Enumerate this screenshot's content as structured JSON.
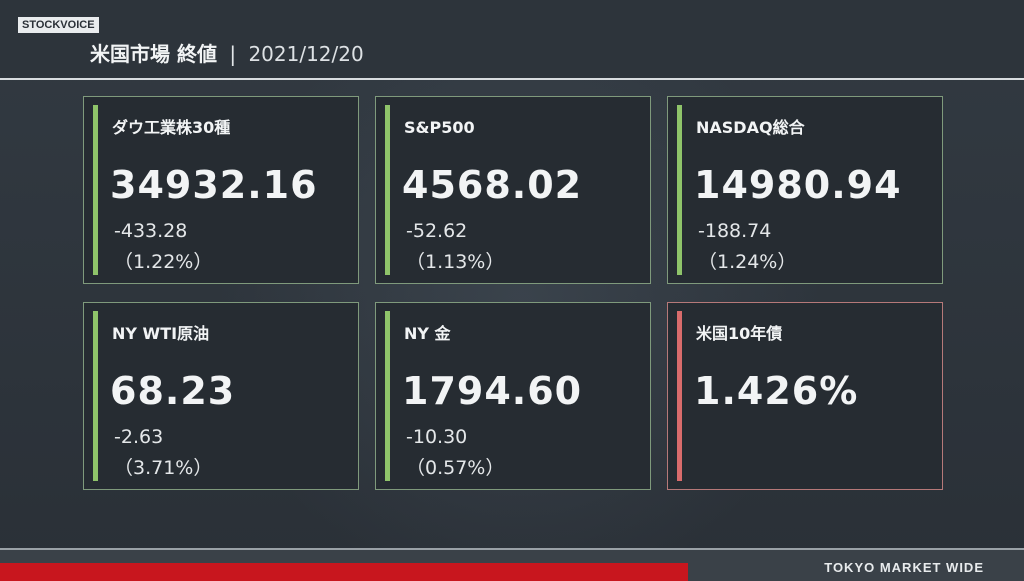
{
  "header": {
    "logo": "STOCKVOICE",
    "title": "米国市場 終値",
    "separator": "|",
    "date": "2021/12/20"
  },
  "cards": [
    {
      "label": "ダウ工業株30種",
      "value": "34932.16",
      "change": "-433.28",
      "pct": "（1.22%）"
    },
    {
      "label": "S&P500",
      "value": "4568.02",
      "change": "-52.62",
      "pct": "（1.13%）"
    },
    {
      "label": "NASDAQ総合",
      "value": "14980.94",
      "change": "-188.74",
      "pct": "（1.24%）"
    },
    {
      "label": "NY WTI原油",
      "value": "68.23",
      "change": "-2.63",
      "pct": "（3.71%）"
    },
    {
      "label": "NY 金",
      "value": "1794.60",
      "change": "-10.30",
      "pct": "（0.57%）"
    },
    {
      "label": "米国10年債",
      "value": "1.426%"
    }
  ],
  "footer": {
    "brand": "TOKYO MARKET WIDE"
  },
  "colors": {
    "background": "#2b3138",
    "accent_green": "#8fc46a",
    "accent_red": "#d96c6c",
    "footer_red": "#c8161e"
  }
}
